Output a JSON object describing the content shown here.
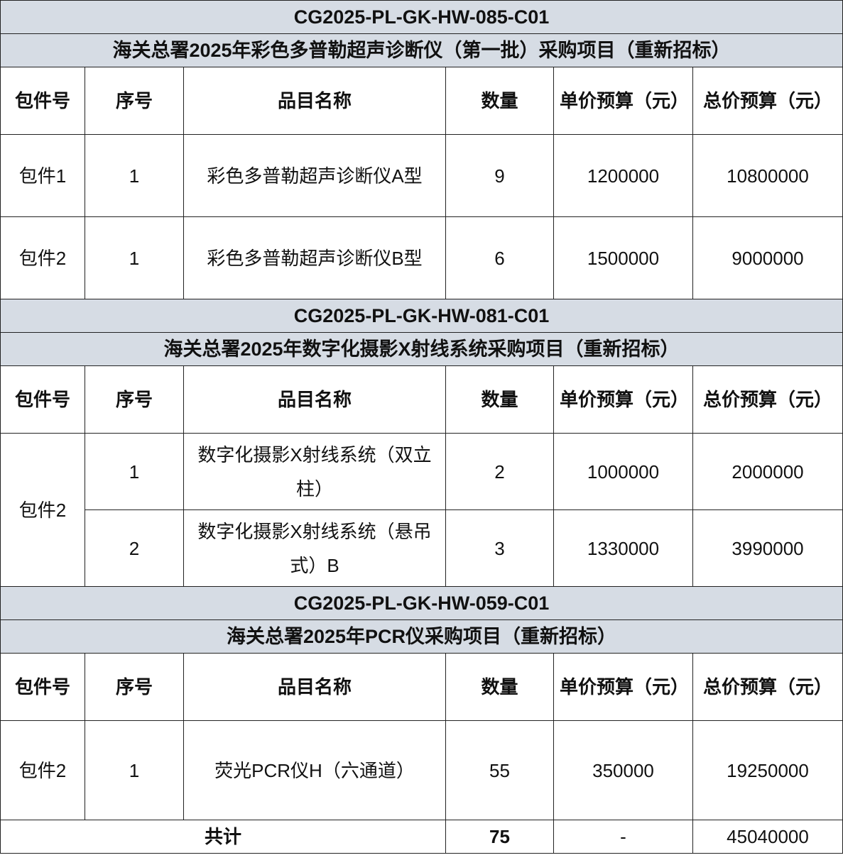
{
  "colors": {
    "band_background": "#d6dce4",
    "border": "#222222"
  },
  "headers": [
    "包件号",
    "序号",
    "品目名称",
    "数量",
    "单价预算（元）",
    "总价预算（元）"
  ],
  "sections": [
    {
      "code": "CG2025-PL-GK-HW-085-C01",
      "title": "海关总署2025年彩色多普勒超声诊断仪（第一批）采购项目（重新招标）",
      "rows": [
        {
          "package": "包件1",
          "seq": "1",
          "name": "彩色多普勒超声诊断仪A型",
          "qty": "9",
          "unit": "1200000",
          "total": "10800000"
        },
        {
          "package": "包件2",
          "seq": "1",
          "name": "彩色多普勒超声诊断仪B型",
          "qty": "6",
          "unit": "1500000",
          "total": "9000000"
        }
      ]
    },
    {
      "code": "CG2025-PL-GK-HW-081-C01",
      "title": "海关总署2025年数字化摄影X射线系统采购项目（重新招标）",
      "rows": [
        {
          "package": "包件2",
          "seq": "1",
          "name": "数字化摄影X射线系统（双立柱）",
          "qty": "2",
          "unit": "1000000",
          "total": "2000000"
        },
        {
          "package": "",
          "seq": "2",
          "name": "数字化摄影X射线系统（悬吊式）B",
          "qty": "3",
          "unit": "1330000",
          "total": "3990000"
        }
      ]
    },
    {
      "code": "CG2025-PL-GK-HW-059-C01",
      "title": "海关总署2025年PCR仪采购项目（重新招标）",
      "rows": [
        {
          "package": "包件2",
          "seq": "1",
          "name": "荧光PCR仪H（六通道）",
          "qty": "55",
          "unit": "350000",
          "total": "19250000"
        }
      ]
    }
  ],
  "total": {
    "label": "共计",
    "qty": "75",
    "unit": "-",
    "total": "45040000"
  }
}
